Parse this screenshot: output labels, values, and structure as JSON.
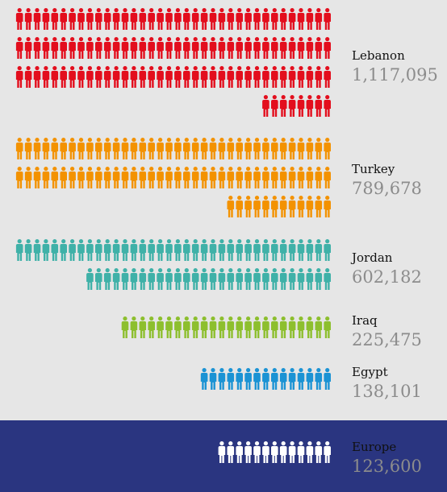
{
  "chart_data": {
    "type": "pictogram",
    "title": "",
    "colors": {
      "background": "#e6e6e6",
      "europe_band": "#2a3580",
      "value_text": "#8c8c8c",
      "europe_value_text": "#9aa3d6"
    },
    "icon": "person-icon",
    "series": [
      {
        "name": "Lebanon",
        "value_label": "1,117,095",
        "value": 1117095,
        "icons": 116,
        "color": "#e30e1d"
      },
      {
        "name": "Turkey",
        "value_label": "789,678",
        "value": 789678,
        "icons": 84,
        "color": "#f39200"
      },
      {
        "name": "Jordan",
        "value_label": "602,182",
        "value": 602182,
        "icons": 64,
        "color": "#3fb1a8"
      },
      {
        "name": "Iraq",
        "value_label": "225,475",
        "value": 225475,
        "icons": 24,
        "color": "#8dbf2e"
      },
      {
        "name": "Egypt",
        "value_label": "138,101",
        "value": 138101,
        "icons": 15,
        "color": "#1b93d4"
      },
      {
        "name": "Europe",
        "value_label": "123,600",
        "value": 123600,
        "icons": 13,
        "color": "#ffffff"
      }
    ]
  }
}
